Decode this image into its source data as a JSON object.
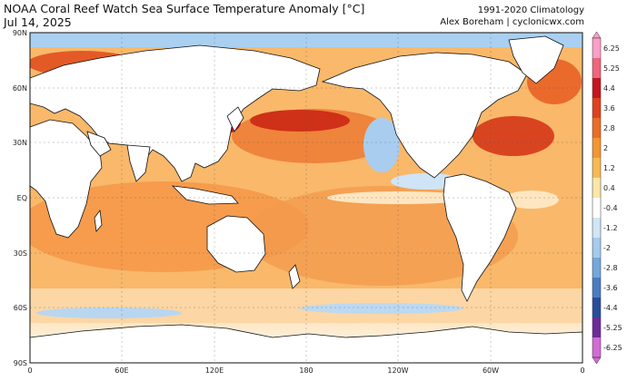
{
  "header": {
    "title": "NOAA Coral Reef Watch Sea Surface Temperature Anomaly [°C]",
    "date": "Jul 14, 2025",
    "climatology": "1991-2020 Climatology",
    "credit": "Alex Boreham | cyclonicwx.com"
  },
  "axes": {
    "lat_labels": [
      "90N",
      "60N",
      "30N",
      "EQ",
      "30S",
      "60S",
      "90S"
    ],
    "lon_labels": [
      "0",
      "60E",
      "120E",
      "180",
      "120W",
      "60W",
      "0"
    ]
  },
  "colorbar": {
    "labels": [
      "6.25",
      "5.25",
      "4.4",
      "3.6",
      "2.8",
      "2",
      "1.2",
      "0.4",
      "-0.4",
      "-1.2",
      "-2",
      "-2.8",
      "-3.6",
      "-4.4",
      "-5.25",
      "-6.25"
    ],
    "colors": [
      "#ff9ec8",
      "#f2647a",
      "#c8141e",
      "#e2401c",
      "#f06a24",
      "#f6952e",
      "#fab950",
      "#fde6a6",
      "#ffffff",
      "#cfe6f6",
      "#a3cbed",
      "#72a8dc",
      "#4a7cc4",
      "#2a4c9c",
      "#6c2a9c",
      "#d36ad6"
    ]
  },
  "map_colors": {
    "ocean_warm": "#f7a24e",
    "ocean_hot": "#e2401c",
    "ocean_cool": "#9cc6ec",
    "ocean_neutral": "#fde3bf",
    "land": "#ffffff"
  }
}
